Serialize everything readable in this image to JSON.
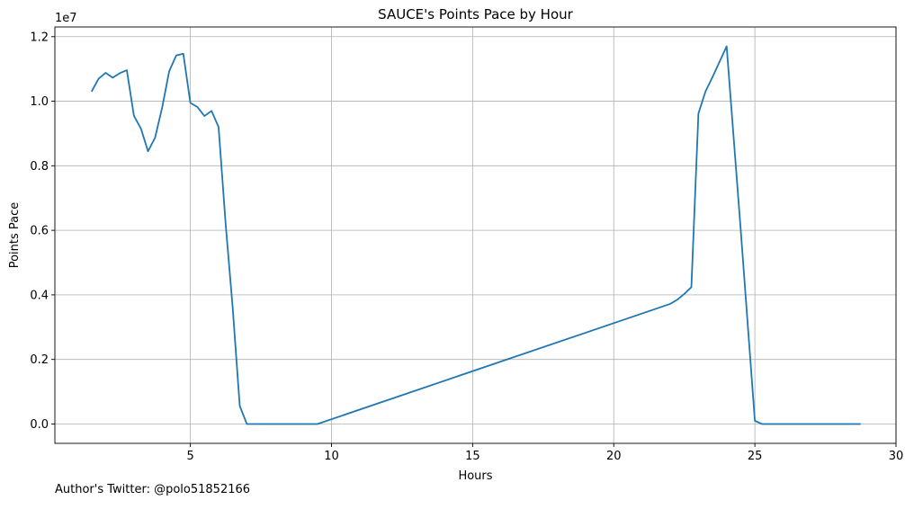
{
  "chart_data": {
    "type": "line",
    "title": "SAUCE's Points Pace by Hour",
    "xlabel": "Hours",
    "ylabel": "Points Pace",
    "y_offset_label": "1e7",
    "xlim": [
      0.2,
      30.0
    ],
    "ylim": [
      -600000,
      12300000
    ],
    "xticks": [
      5,
      10,
      15,
      20,
      25,
      30
    ],
    "xtick_labels": [
      "5",
      "10",
      "15",
      "20",
      "25",
      "30"
    ],
    "yticks": [
      0,
      2000000,
      4000000,
      6000000,
      8000000,
      10000000,
      12000000
    ],
    "ytick_labels": [
      "0.0",
      "0.2",
      "0.4",
      "0.6",
      "0.8",
      "1.0",
      "1.2"
    ],
    "grid": true,
    "series": [
      {
        "color": "#1f77b4",
        "x": [
          1.5,
          1.75,
          2.0,
          2.25,
          2.5,
          2.75,
          3.0,
          3.25,
          3.5,
          3.75,
          4.0,
          4.25,
          4.5,
          4.75,
          5.0,
          5.25,
          5.5,
          5.75,
          6.0,
          6.25,
          6.5,
          6.75,
          7.0,
          9.5,
          22.0,
          22.25,
          22.5,
          22.75,
          23.0,
          23.25,
          23.5,
          24.0,
          24.5,
          25.0,
          25.25,
          28.75
        ],
        "y": [
          10300000,
          10700000,
          10880000,
          10730000,
          10870000,
          10960000,
          9550000,
          9150000,
          8450000,
          8870000,
          9800000,
          10930000,
          11420000,
          11470000,
          9950000,
          9820000,
          9540000,
          9700000,
          9200000,
          6200000,
          3600000,
          560000,
          0,
          0,
          3720000,
          3850000,
          4030000,
          4240000,
          9620000,
          10300000,
          10750000,
          11700000,
          6000000,
          100000,
          0,
          0
        ]
      }
    ]
  },
  "footer": {
    "author": "Author's Twitter: @polo51852166"
  }
}
